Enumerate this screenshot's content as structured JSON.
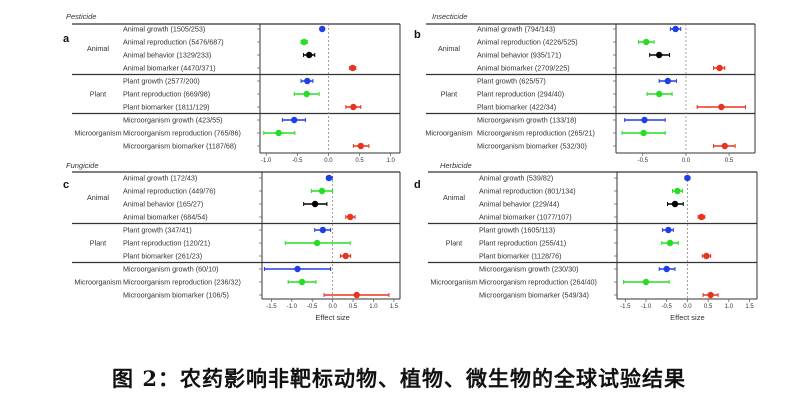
{
  "caption": "图 2：农药影响非靶标动物、植物、微生物的全球试验结果",
  "colors": {
    "growth": "#1f3fe6",
    "reproduction": "#25dd25",
    "behavior": "#000000",
    "biomarker": "#e8341f"
  },
  "chart_data": [
    {
      "type": "forest",
      "panel": "a",
      "title": "Pesticide",
      "xlabel": "",
      "xlim": [
        -1.1,
        1.15
      ],
      "xticks": [
        "-1.0",
        "-0.5",
        "0.0",
        "0.5",
        "1.0"
      ],
      "groups": [
        "Animal",
        "Plant",
        "Microorganism"
      ],
      "rows": [
        {
          "group": "Animal",
          "label": "Animal growth (1505/253)",
          "kind": "growth",
          "est": -0.1,
          "lo": -0.13,
          "hi": -0.07
        },
        {
          "group": "Animal",
          "label": "Animal reproduction (5476/687)",
          "kind": "reproduction",
          "est": -0.39,
          "lo": -0.44,
          "hi": -0.34
        },
        {
          "group": "Animal",
          "label": "Animal behavior (1329/233)",
          "kind": "behavior",
          "est": -0.31,
          "lo": -0.4,
          "hi": -0.22
        },
        {
          "group": "Animal",
          "label": "Animal biomarker (4470/371)",
          "kind": "biomarker",
          "est": 0.39,
          "lo": 0.34,
          "hi": 0.44
        },
        {
          "group": "Plant",
          "label": "Plant growth (2577/200)",
          "kind": "growth",
          "est": -0.34,
          "lo": -0.44,
          "hi": -0.25
        },
        {
          "group": "Plant",
          "label": "Plant reproduction (669/98)",
          "kind": "reproduction",
          "est": -0.35,
          "lo": -0.55,
          "hi": -0.15
        },
        {
          "group": "Plant",
          "label": "Plant biomarker (1811/129)",
          "kind": "biomarker",
          "est": 0.4,
          "lo": 0.28,
          "hi": 0.52
        },
        {
          "group": "Microorganism",
          "label": "Microorganism growth (423/55)",
          "kind": "growth",
          "est": -0.55,
          "lo": -0.74,
          "hi": -0.37
        },
        {
          "group": "Microorganism",
          "label": "Microorganism reproduction (765/86)",
          "kind": "reproduction",
          "est": -0.8,
          "lo": -1.04,
          "hi": -0.54
        },
        {
          "group": "Microorganism",
          "label": "Microorganism biomarker (1187/68)",
          "kind": "biomarker",
          "est": 0.52,
          "lo": 0.4,
          "hi": 0.65
        }
      ]
    },
    {
      "type": "forest",
      "panel": "b",
      "title": "Insecticide",
      "xlabel": "",
      "xlim": [
        -0.81,
        0.8
      ],
      "xticks": [
        "-0.5",
        "0.0",
        "0.5"
      ],
      "groups": [
        "Animal",
        "Plant",
        "Microorganism"
      ],
      "rows": [
        {
          "group": "Animal",
          "label": "Animal growth (794/143)",
          "kind": "growth",
          "est": -0.12,
          "lo": -0.18,
          "hi": -0.06
        },
        {
          "group": "Animal",
          "label": "Animal reproduction (4226/525)",
          "kind": "reproduction",
          "est": -0.46,
          "lo": -0.55,
          "hi": -0.37
        },
        {
          "group": "Animal",
          "label": "Animal behavior (935/171)",
          "kind": "behavior",
          "est": -0.31,
          "lo": -0.42,
          "hi": -0.19
        },
        {
          "group": "Animal",
          "label": "Animal biomarker (2709/225)",
          "kind": "biomarker",
          "est": 0.39,
          "lo": 0.32,
          "hi": 0.45
        },
        {
          "group": "Plant",
          "label": "Plant growth (625/57)",
          "kind": "growth",
          "est": -0.21,
          "lo": -0.31,
          "hi": -0.11
        },
        {
          "group": "Plant",
          "label": "Plant reproduction (294/40)",
          "kind": "reproduction",
          "est": -0.31,
          "lo": -0.45,
          "hi": -0.16
        },
        {
          "group": "Plant",
          "label": "Plant biomarker (422/34)",
          "kind": "biomarker",
          "est": 0.41,
          "lo": 0.13,
          "hi": 0.69
        },
        {
          "group": "Microorganism",
          "label": "Microorganism growth (133/18)",
          "kind": "growth",
          "est": -0.48,
          "lo": -0.71,
          "hi": -0.24
        },
        {
          "group": "Microorganism",
          "label": "Microorganism reproduction (265/21)",
          "kind": "reproduction",
          "est": -0.49,
          "lo": -0.74,
          "hi": -0.24
        },
        {
          "group": "Microorganism",
          "label": "Microorganism biomarker (532/30)",
          "kind": "biomarker",
          "est": 0.45,
          "lo": 0.32,
          "hi": 0.57
        }
      ]
    },
    {
      "type": "forest",
      "panel": "c",
      "title": "Fungicide",
      "xlabel": "Effect size",
      "xlim": [
        -1.73,
        1.65
      ],
      "xticks": [
        "-1.5",
        "-1.0",
        "-0.5",
        "0.0",
        "0.5",
        "1.0",
        "1.5"
      ],
      "groups": [
        "Animal",
        "Plant",
        "Microorganism"
      ],
      "rows": [
        {
          "group": "Animal",
          "label": "Animal growth (172/43)",
          "kind": "growth",
          "est": -0.09,
          "lo": -0.15,
          "hi": -0.01
        },
        {
          "group": "Animal",
          "label": "Animal reproduction (449/76)",
          "kind": "reproduction",
          "est": -0.26,
          "lo": -0.52,
          "hi": 0.0
        },
        {
          "group": "Animal",
          "label": "Animal behavior (165/27)",
          "kind": "behavior",
          "est": -0.43,
          "lo": -0.71,
          "hi": -0.14
        },
        {
          "group": "Animal",
          "label": "Animal biomarker (684/54)",
          "kind": "biomarker",
          "est": 0.43,
          "lo": 0.32,
          "hi": 0.55
        },
        {
          "group": "Plant",
          "label": "Plant growth (347/41)",
          "kind": "growth",
          "est": -0.24,
          "lo": -0.44,
          "hi": -0.05
        },
        {
          "group": "Plant",
          "label": "Plant reproduction (120/21)",
          "kind": "reproduction",
          "est": -0.38,
          "lo": -1.16,
          "hi": 0.43
        },
        {
          "group": "Plant",
          "label": "Plant biomarker (261/23)",
          "kind": "biomarker",
          "est": 0.32,
          "lo": 0.19,
          "hi": 0.44
        },
        {
          "group": "Microorganism",
          "label": "Microorganism growth (60/10)",
          "kind": "growth",
          "est": -0.86,
          "lo": -1.67,
          "hi": -0.05
        },
        {
          "group": "Microorganism",
          "label": "Microorganism reproduction (236/32)",
          "kind": "reproduction",
          "est": -0.75,
          "lo": -1.09,
          "hi": -0.41
        },
        {
          "group": "Microorganism",
          "label": "Microorganism biomarker (106/5)",
          "kind": "biomarker",
          "est": 0.59,
          "lo": -0.21,
          "hi": 1.38
        }
      ]
    },
    {
      "type": "forest",
      "panel": "d",
      "title": "Herbicide",
      "xlabel": "Effect size",
      "xlim": [
        -1.7,
        1.68
      ],
      "xticks": [
        "-1.5",
        "-1.0",
        "-0.5",
        "0.0",
        "0.5",
        "1.0",
        "1.5"
      ],
      "groups": [
        "Animal",
        "Plant",
        "Microorganism"
      ],
      "rows": [
        {
          "group": "Animal",
          "label": "Animal growth (539/82)",
          "kind": "growth",
          "est": 0.0,
          "lo": -0.06,
          "hi": 0.06
        },
        {
          "group": "Animal",
          "label": "Animal reproduction (801/134)",
          "kind": "reproduction",
          "est": -0.24,
          "lo": -0.36,
          "hi": -0.12
        },
        {
          "group": "Animal",
          "label": "Animal behavior (229/44)",
          "kind": "behavior",
          "est": -0.3,
          "lo": -0.48,
          "hi": -0.1
        },
        {
          "group": "Animal",
          "label": "Animal biomarker (1077/107)",
          "kind": "biomarker",
          "est": 0.34,
          "lo": 0.26,
          "hi": 0.42
        },
        {
          "group": "Plant",
          "label": "Plant growth (1605/113)",
          "kind": "growth",
          "est": -0.46,
          "lo": -0.6,
          "hi": -0.34
        },
        {
          "group": "Plant",
          "label": "Plant reproduction (255/41)",
          "kind": "reproduction",
          "est": -0.42,
          "lo": -0.62,
          "hi": -0.22
        },
        {
          "group": "Plant",
          "label": "Plant biomarker (1128/76)",
          "kind": "biomarker",
          "est": 0.46,
          "lo": 0.36,
          "hi": 0.56
        },
        {
          "group": "Microorganism",
          "label": "Microorganism growth (230/30)",
          "kind": "growth",
          "est": -0.5,
          "lo": -0.68,
          "hi": -0.3
        },
        {
          "group": "Microorganism",
          "label": "Microorganism reproduction (264/40)",
          "kind": "reproduction",
          "est": -1.0,
          "lo": -1.54,
          "hi": -0.44
        },
        {
          "group": "Microorganism",
          "label": "Microorganism biomarker (549/34)",
          "kind": "biomarker",
          "est": 0.56,
          "lo": 0.38,
          "hi": 0.74
        }
      ]
    }
  ]
}
